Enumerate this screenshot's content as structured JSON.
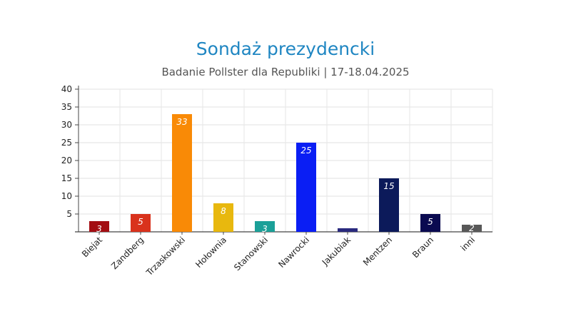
{
  "chart_data": {
    "type": "bar",
    "title": "Sondaż prezydencki",
    "subtitle": "Badanie Pollster dla Republiki | 17-18.04.2025",
    "xlabel": "",
    "ylabel": "",
    "ylim": [
      0,
      40
    ],
    "yticks": [
      5,
      10,
      15,
      20,
      25,
      30,
      35,
      40
    ],
    "grid": true,
    "categories": [
      "Biejat",
      "Zandberg",
      "Trzaskowski",
      "Hołownia",
      "Stanowski",
      "Nawrocki",
      "Jakubiak",
      "Mentzen",
      "Braun",
      "inni"
    ],
    "values": [
      3,
      5,
      33,
      8,
      3,
      25,
      1,
      15,
      5,
      2
    ],
    "data_labels": [
      "3",
      "5",
      "33",
      "8",
      "3",
      "25",
      "",
      "15",
      "5",
      "2"
    ],
    "colors": [
      "#a30d12",
      "#d9321c",
      "#f98a06",
      "#e8b80e",
      "#1ba098",
      "#0a1ef4",
      "#2a2a7e",
      "#0c1a5a",
      "#0a0a50",
      "#585858"
    ]
  }
}
